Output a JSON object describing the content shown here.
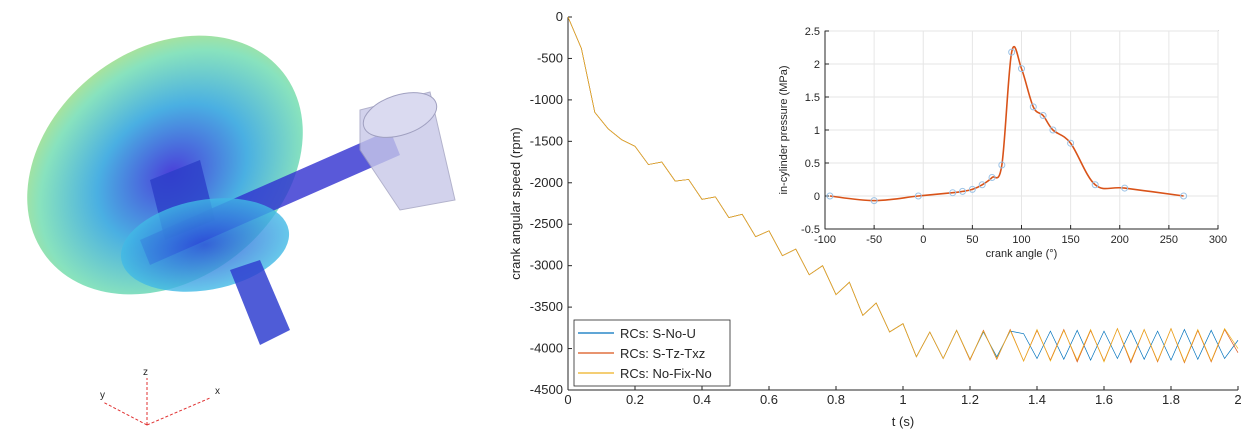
{
  "render_axes": {
    "x": "x",
    "y": "y",
    "z": "z"
  },
  "chart_data": [
    {
      "type": "line",
      "xlabel": "t (s)",
      "ylabel": "crank angular speed (rpm)",
      "xlim": [
        0,
        2
      ],
      "xticks": [
        0,
        0.2,
        0.4,
        0.6,
        0.8,
        1,
        1.2,
        1.4,
        1.6,
        1.8,
        2
      ],
      "ylim": [
        -4500,
        0
      ],
      "yticks": [
        -4500,
        -4000,
        -3500,
        -3000,
        -2500,
        -2000,
        -1500,
        -1000,
        -500,
        0
      ],
      "grid": false,
      "legend": "lower-left",
      "x": [
        0,
        0.04,
        0.08,
        0.12,
        0.16,
        0.2,
        0.24,
        0.28,
        0.32,
        0.36,
        0.4,
        0.44,
        0.48,
        0.52,
        0.56,
        0.6,
        0.64,
        0.68,
        0.72,
        0.76,
        0.8,
        0.84,
        0.88,
        0.92,
        0.96,
        1.0,
        1.04,
        1.08,
        1.12,
        1.16,
        1.2,
        1.24,
        1.28,
        1.32,
        1.36,
        1.4,
        1.44,
        1.48,
        1.52,
        1.56,
        1.6,
        1.64,
        1.68,
        1.72,
        1.76,
        1.8,
        1.84,
        1.88,
        1.92,
        1.96,
        2.0
      ],
      "series": [
        {
          "name": "RCs: S-No-U",
          "color": "#0072BD",
          "values": [
            0,
            -380,
            -1150,
            -1350,
            -1480,
            -1560,
            -1780,
            -1750,
            -1980,
            -1960,
            -2200,
            -2170,
            -2420,
            -2380,
            -2650,
            -2580,
            -2880,
            -2800,
            -3110,
            -3000,
            -3350,
            -3200,
            -3600,
            -3450,
            -3800,
            -3700,
            -4100,
            -3800,
            -4120,
            -3780,
            -4130,
            -3800,
            -4100,
            -3790,
            -3820,
            -4120,
            -3790,
            -4130,
            -3780,
            -4140,
            -3790,
            -4120,
            -3780,
            -4130,
            -3790,
            -4140,
            -3770,
            -4130,
            -3780,
            -4120,
            -3900
          ]
        },
        {
          "name": "RCs: S-Tz-Txz",
          "color": "#D95319",
          "values": [
            0,
            -380,
            -1150,
            -1350,
            -1480,
            -1560,
            -1780,
            -1750,
            -1980,
            -1960,
            -2200,
            -2170,
            -2420,
            -2380,
            -2650,
            -2580,
            -2880,
            -2800,
            -3110,
            -3000,
            -3350,
            -3200,
            -3600,
            -3450,
            -3800,
            -3700,
            -4100,
            -3800,
            -4120,
            -3780,
            -4140,
            -3780,
            -4130,
            -3770,
            -4150,
            -3780,
            -4140,
            -3770,
            -4160,
            -3780,
            -4150,
            -3760,
            -4170,
            -3770,
            -4160,
            -3760,
            -4170,
            -3780,
            -4160,
            -3770,
            -4050
          ]
        },
        {
          "name": "RCs: No-Fix-No",
          "color": "#EDB120",
          "values": [
            0,
            -380,
            -1150,
            -1350,
            -1480,
            -1560,
            -1780,
            -1750,
            -1980,
            -1960,
            -2200,
            -2170,
            -2420,
            -2380,
            -2650,
            -2580,
            -2880,
            -2800,
            -3110,
            -3000,
            -3350,
            -3200,
            -3600,
            -3450,
            -3800,
            -3700,
            -4100,
            -3800,
            -4120,
            -3780,
            -4130,
            -3790,
            -4120,
            -3780,
            -4150,
            -3770,
            -4150,
            -3780,
            -4140,
            -3770,
            -4160,
            -3760,
            -4150,
            -3770,
            -4150,
            -3760,
            -4160,
            -3770,
            -4150,
            -3760,
            -4000
          ]
        }
      ]
    },
    {
      "type": "line",
      "xlabel": "crank angle (°)",
      "ylabel": "in-cylinder pressure (MPa)",
      "xlim": [
        -100,
        300
      ],
      "xticks": [
        -100,
        -50,
        0,
        50,
        100,
        150,
        200,
        250,
        300
      ],
      "ylim": [
        -0.5,
        2.5
      ],
      "yticks": [
        -0.5,
        0,
        0.5,
        1,
        1.5,
        2,
        2.5
      ],
      "grid": true,
      "marker_color": "#9cc3e6",
      "x": [
        -95,
        -50,
        -5,
        30,
        40,
        50,
        60,
        70,
        80,
        90,
        100,
        112,
        122,
        132,
        150,
        175,
        205,
        265
      ],
      "series": [
        {
          "color": "#D95319",
          "values": [
            0,
            -0.07,
            0,
            0.05,
            0.07,
            0.1,
            0.17,
            0.28,
            0.47,
            2.18,
            1.93,
            1.35,
            1.22,
            1.0,
            0.8,
            0.17,
            0.12,
            0.0
          ]
        }
      ]
    }
  ]
}
